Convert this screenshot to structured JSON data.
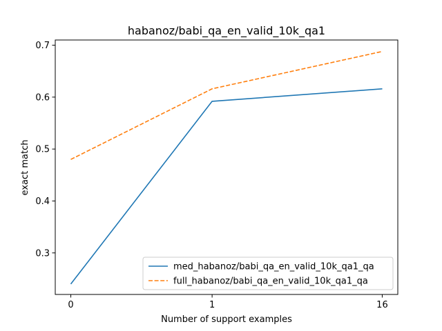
{
  "chart_data": {
    "type": "line",
    "title": "habanoz/babi_qa_en_valid_10k_qa1",
    "xlabel": "Number of support examples",
    "ylabel": "exact match",
    "x": [
      0,
      1,
      16
    ],
    "x_tick_labels": [
      "0",
      "1",
      "16"
    ],
    "y_ticks": [
      0.3,
      0.4,
      0.5,
      0.6,
      0.7
    ],
    "y_tick_labels": [
      "0.3",
      "0.4",
      "0.5",
      "0.6",
      "0.7"
    ],
    "ylim": [
      0.22,
      0.71
    ],
    "grid": false,
    "legend_position": "lower-right",
    "series": [
      {
        "name": "med_habanoz/babi_qa_en_valid_10k_qa1_qa",
        "values": [
          0.24,
          0.592,
          0.616
        ],
        "color": "#1f77b4",
        "style": "solid"
      },
      {
        "name": "full_habanoz/babi_qa_en_valid_10k_qa1_qa",
        "values": [
          0.48,
          0.616,
          0.688
        ],
        "color": "#ff7f0e",
        "style": "dashed"
      }
    ]
  }
}
